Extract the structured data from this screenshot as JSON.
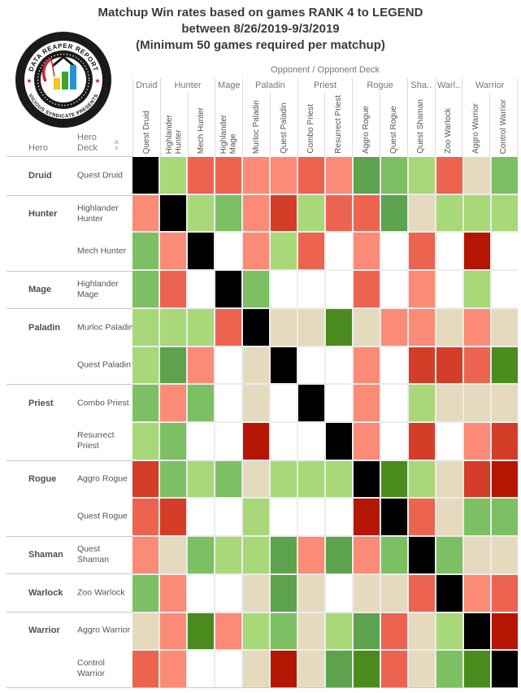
{
  "title": {
    "line1": "Matchup Win rates based on games RANK 4 to LEGEND",
    "line2": "between 8/26/2019-9/3/2019",
    "line3": "(Minimum 50 games required per matchup)"
  },
  "logo": {
    "top_text": "DATA REAPER REPORT",
    "bottom_text": "VICIOUS SYNDICATE PRESENTS",
    "star": "★",
    "colors": {
      "ring": "#1a1a1a",
      "star": "#b3272d",
      "scythe": "#c5272d",
      "bar_yellow": "#f5c324",
      "bar_green": "#3fa32f",
      "bar_blue": "#2196d4"
    }
  },
  "axis": {
    "opponent_label": "Opponent  /  Opponent Deck",
    "hero_label": "Hero",
    "hero_deck_label": "Hero\nDeck",
    "sort_icon_top": "A",
    "sort_icon_bottom": "z"
  },
  "columns": {
    "groups": [
      {
        "label": "Druid",
        "span": 1
      },
      {
        "label": "Hunter",
        "span": 2
      },
      {
        "label": "Mage",
        "span": 1
      },
      {
        "label": "Paladin",
        "span": 2
      },
      {
        "label": "Priest",
        "span": 2
      },
      {
        "label": "Rogue",
        "span": 2
      },
      {
        "label": "Sha..",
        "span": 1
      },
      {
        "label": "Warl..",
        "span": 1
      },
      {
        "label": "Warrior",
        "span": 2
      }
    ],
    "decks": [
      "Quest Druid",
      "Highlander\nHunter",
      "Mech Hunter",
      "Highlander\nMage",
      "Murloc Paladin",
      "Quest Paladin",
      "Combo Priest",
      "Resurrect Priest",
      "Aggro Rogue",
      "Quest Rogue",
      "Quest Shaman",
      "Zoo Warlock",
      "Aggro Warrior",
      "Control Warrior"
    ]
  },
  "rows": [
    {
      "hero": "Druid",
      "deck": "Quest Druid",
      "group_start": false
    },
    {
      "hero": "Hunter",
      "deck": "Highlander\nHunter",
      "group_start": true
    },
    {
      "hero": "",
      "deck": "Mech Hunter",
      "group_start": false
    },
    {
      "hero": "Mage",
      "deck": "Highlander\nMage",
      "group_start": true
    },
    {
      "hero": "Paladin",
      "deck": "Murloc Paladin",
      "group_start": true
    },
    {
      "hero": "",
      "deck": "Quest Paladin",
      "group_start": false
    },
    {
      "hero": "Priest",
      "deck": "Combo Priest",
      "group_start": true
    },
    {
      "hero": "",
      "deck": "Resurrect\nPriest",
      "group_start": false
    },
    {
      "hero": "Rogue",
      "deck": "Aggro Rogue",
      "group_start": true
    },
    {
      "hero": "",
      "deck": "Quest Rogue",
      "group_start": false
    },
    {
      "hero": "Shaman",
      "deck": "Quest Shaman",
      "group_start": true
    },
    {
      "hero": "Warlock",
      "deck": "Zoo Warlock",
      "group_start": true
    },
    {
      "hero": "Warrior",
      "deck": "Aggro Warrior",
      "group_start": true
    },
    {
      "hero": "",
      "deck": "Control Warrior",
      "group_start": false
    }
  ],
  "chart_data": {
    "type": "heatmap",
    "title": "Matchup Win rates based on games RANK 4 to LEGEND between 8/26/2019-9/3/2019 (Minimum 50 games required per matchup)",
    "x_axis_label": "Opponent / Opponent Deck",
    "y_axis_label": "Hero / Hero Deck",
    "x_decks": [
      "Quest Druid",
      "Highlander Hunter",
      "Mech Hunter",
      "Highlander Mage",
      "Murloc Paladin",
      "Quest Paladin",
      "Combo Priest",
      "Resurrect Priest",
      "Aggro Rogue",
      "Quest Rogue",
      "Quest Shaman",
      "Zoo Warlock",
      "Aggro Warrior",
      "Control Warrior"
    ],
    "y_decks": [
      "Quest Druid",
      "Highlander Hunter",
      "Mech Hunter",
      "Highlander Mage",
      "Murloc Paladin",
      "Quest Paladin",
      "Combo Priest",
      "Resurrect Priest",
      "Aggro Rogue",
      "Quest Rogue",
      "Quest Shaman",
      "Zoo Warlock",
      "Aggro Warrior",
      "Control Warrior"
    ],
    "palette": {
      "K": {
        "hex": "#000000",
        "meaning": "mirror matchup",
        "approx_win_rate": 50
      },
      "W": {
        "hex": "#ffffff",
        "meaning": "no data (under 50 games)",
        "approx_win_rate": null
      },
      "G4": {
        "hex": "#4b8b1e",
        "meaning": "strongly favored",
        "approx_win_rate": 66
      },
      "G3": {
        "hex": "#5da24c",
        "meaning": "favored",
        "approx_win_rate": 60
      },
      "G2": {
        "hex": "#7dbf63",
        "meaning": "favored",
        "approx_win_rate": 56
      },
      "G1": {
        "hex": "#a8d878",
        "meaning": "slightly favored",
        "approx_win_rate": 53
      },
      "N": {
        "hex": "#e5dabd",
        "meaning": "even matchup",
        "approx_win_rate": 50
      },
      "R1": {
        "hex": "#fb8a76",
        "meaning": "slightly unfavored",
        "approx_win_rate": 47
      },
      "R2": {
        "hex": "#ec6450",
        "meaning": "unfavored",
        "approx_win_rate": 44
      },
      "R3": {
        "hex": "#d43d28",
        "meaning": "unfavored",
        "approx_win_rate": 40
      },
      "R4": {
        "hex": "#b51604",
        "meaning": "strongly unfavored",
        "approx_win_rate": 34
      }
    },
    "matrix": [
      [
        "K",
        "G1",
        "R2",
        "R2",
        "R1",
        "R1",
        "R2",
        "R1",
        "G3",
        "G2",
        "G1",
        "R2",
        "N",
        "G2"
      ],
      [
        "R1",
        "K",
        "G1",
        "G2",
        "R1",
        "R3",
        "G1",
        "R2",
        "R2",
        "G3",
        "N",
        "G1",
        "G1",
        "G1"
      ],
      [
        "G2",
        "R1",
        "K",
        "W",
        "R1",
        "G1",
        "R2",
        "W",
        "R1",
        "W",
        "R2",
        "W",
        "R4",
        "W"
      ],
      [
        "G2",
        "R2",
        "W",
        "K",
        "G2",
        "W",
        "W",
        "W",
        "R2",
        "W",
        "R1",
        "W",
        "G1",
        "W"
      ],
      [
        "G1",
        "G1",
        "G1",
        "R2",
        "K",
        "N",
        "N",
        "G4",
        "N",
        "R1",
        "R1",
        "N",
        "R1",
        "N"
      ],
      [
        "G1",
        "G3",
        "R1",
        "W",
        "N",
        "K",
        "W",
        "W",
        "R1",
        "W",
        "R3",
        "R3",
        "R2",
        "G4"
      ],
      [
        "G2",
        "R1",
        "G2",
        "W",
        "N",
        "W",
        "K",
        "W",
        "R1",
        "W",
        "G1",
        "N",
        "N",
        "N"
      ],
      [
        "G1",
        "G2",
        "W",
        "W",
        "R4",
        "W",
        "W",
        "K",
        "R1",
        "W",
        "R3",
        "W",
        "R1",
        "R3"
      ],
      [
        "R3",
        "G2",
        "G1",
        "G2",
        "N",
        "G1",
        "G1",
        "G1",
        "K",
        "G4",
        "G1",
        "N",
        "R3",
        "R4"
      ],
      [
        "R2",
        "R3",
        "W",
        "W",
        "G1",
        "W",
        "W",
        "W",
        "R4",
        "K",
        "R2",
        "N",
        "G2",
        "G2"
      ],
      [
        "R1",
        "N",
        "G2",
        "G1",
        "G1",
        "G3",
        "R1",
        "G3",
        "R1",
        "G2",
        "K",
        "G2",
        "N",
        "N"
      ],
      [
        "G2",
        "R1",
        "W",
        "W",
        "N",
        "G3",
        "N",
        "W",
        "N",
        "N",
        "R2",
        "K",
        "R1",
        "R2"
      ],
      [
        "N",
        "R1",
        "G4",
        "R1",
        "G1",
        "G2",
        "N",
        "G1",
        "G3",
        "R2",
        "N",
        "G1",
        "K",
        "R4"
      ],
      [
        "R2",
        "R1",
        "W",
        "W",
        "N",
        "R4",
        "N",
        "G3",
        "G4",
        "R2",
        "N",
        "G2",
        "G4",
        "K"
      ]
    ],
    "legend_position": "none",
    "grid": true
  }
}
